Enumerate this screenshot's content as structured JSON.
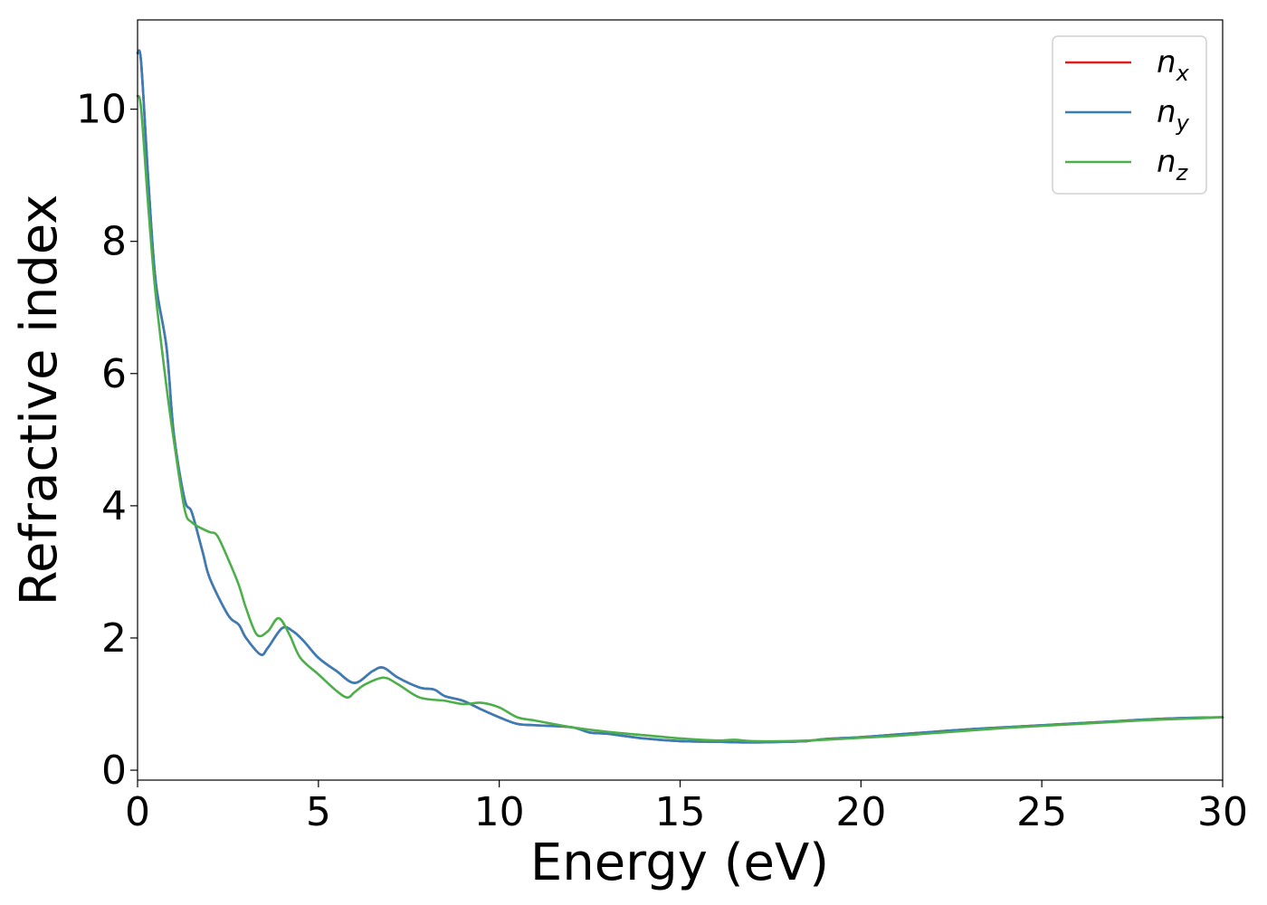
{
  "chart_data": {
    "type": "line",
    "xlabel": "Energy (eV)",
    "ylabel": "Refractive index",
    "xlim": [
      0,
      30
    ],
    "ylim": [
      -0.15,
      11.35
    ],
    "xticks": [
      0,
      5,
      10,
      15,
      20,
      25,
      30
    ],
    "xtick_labels": [
      "0",
      "5",
      "10",
      "15",
      "20",
      "25",
      "30"
    ],
    "yticks": [
      0,
      2,
      4,
      6,
      8,
      10
    ],
    "ytick_labels": [
      "0",
      "2",
      "4",
      "6",
      "8",
      "10"
    ],
    "grid": false,
    "legend_position": "top-right",
    "series": [
      {
        "name": "n",
        "subscript": "x",
        "color": "#e41a1c",
        "x": [
          0,
          0.1,
          0.3,
          0.5,
          0.8,
          1.0,
          1.3,
          1.5,
          1.8,
          2.0,
          2.5,
          2.8,
          3.0,
          3.4,
          3.6,
          4.0,
          4.3,
          4.6,
          5.0,
          5.5,
          6.0,
          6.5,
          6.8,
          7.2,
          7.8,
          8.2,
          8.5,
          9.0,
          9.5,
          10.0,
          10.5,
          11.0,
          12.0,
          12.5,
          13.0,
          14.0,
          15.0,
          16.0,
          17.0,
          18.0,
          18.5,
          19.0,
          20.0,
          21.0,
          22.0,
          23.0,
          24.0,
          25.0,
          26.0,
          27.0,
          28.0,
          29.0,
          30.0
        ],
        "y": [
          10.85,
          10.7,
          8.9,
          7.4,
          6.4,
          5.1,
          4.1,
          3.9,
          3.3,
          2.9,
          2.35,
          2.2,
          2.0,
          1.75,
          1.85,
          2.15,
          2.1,
          1.95,
          1.7,
          1.5,
          1.32,
          1.5,
          1.55,
          1.4,
          1.25,
          1.22,
          1.12,
          1.05,
          0.92,
          0.8,
          0.7,
          0.68,
          0.65,
          0.57,
          0.55,
          0.48,
          0.44,
          0.43,
          0.42,
          0.43,
          0.44,
          0.47,
          0.5,
          0.54,
          0.58,
          0.62,
          0.65,
          0.68,
          0.71,
          0.74,
          0.77,
          0.79,
          0.8
        ]
      },
      {
        "name": "n",
        "subscript": "y",
        "color": "#377eb8",
        "x": [
          0,
          0.1,
          0.3,
          0.5,
          0.8,
          1.0,
          1.3,
          1.5,
          1.8,
          2.0,
          2.5,
          2.8,
          3.0,
          3.4,
          3.6,
          4.0,
          4.3,
          4.6,
          5.0,
          5.5,
          6.0,
          6.5,
          6.8,
          7.2,
          7.8,
          8.2,
          8.5,
          9.0,
          9.5,
          10.0,
          10.5,
          11.0,
          12.0,
          12.5,
          13.0,
          14.0,
          15.0,
          16.0,
          17.0,
          18.0,
          18.5,
          19.0,
          20.0,
          21.0,
          22.0,
          23.0,
          24.0,
          25.0,
          26.0,
          27.0,
          28.0,
          29.0,
          30.0
        ],
        "y": [
          10.85,
          10.7,
          8.9,
          7.4,
          6.4,
          5.1,
          4.1,
          3.9,
          3.3,
          2.9,
          2.35,
          2.2,
          2.0,
          1.75,
          1.85,
          2.15,
          2.1,
          1.95,
          1.7,
          1.5,
          1.32,
          1.5,
          1.55,
          1.4,
          1.25,
          1.22,
          1.12,
          1.05,
          0.92,
          0.8,
          0.7,
          0.68,
          0.65,
          0.57,
          0.55,
          0.48,
          0.44,
          0.43,
          0.42,
          0.43,
          0.44,
          0.47,
          0.5,
          0.54,
          0.58,
          0.62,
          0.65,
          0.68,
          0.71,
          0.74,
          0.77,
          0.79,
          0.8
        ]
      },
      {
        "name": "n",
        "subscript": "z",
        "color": "#4daf4a",
        "x": [
          0,
          0.1,
          0.3,
          0.5,
          0.8,
          1.0,
          1.3,
          1.5,
          1.8,
          2.0,
          2.2,
          2.5,
          2.8,
          3.0,
          3.3,
          3.6,
          3.9,
          4.2,
          4.5,
          5.0,
          5.5,
          5.8,
          6.0,
          6.3,
          6.8,
          7.2,
          7.8,
          8.5,
          9.0,
          9.5,
          10.0,
          10.5,
          11.0,
          12.0,
          13.0,
          14.0,
          15.0,
          16.0,
          16.5,
          17.0,
          18.0,
          19.0,
          20.0,
          21.0,
          22.0,
          23.0,
          24.0,
          25.0,
          26.0,
          27.0,
          28.0,
          29.0,
          30.0
        ],
        "y": [
          10.2,
          10.0,
          8.5,
          7.2,
          5.8,
          5.0,
          3.95,
          3.75,
          3.65,
          3.6,
          3.55,
          3.2,
          2.8,
          2.45,
          2.05,
          2.1,
          2.3,
          2.05,
          1.7,
          1.45,
          1.2,
          1.1,
          1.18,
          1.3,
          1.4,
          1.3,
          1.1,
          1.05,
          1.0,
          1.02,
          0.95,
          0.8,
          0.75,
          0.65,
          0.58,
          0.53,
          0.48,
          0.45,
          0.46,
          0.44,
          0.44,
          0.46,
          0.49,
          0.52,
          0.56,
          0.6,
          0.64,
          0.67,
          0.7,
          0.73,
          0.76,
          0.78,
          0.8
        ]
      }
    ]
  }
}
